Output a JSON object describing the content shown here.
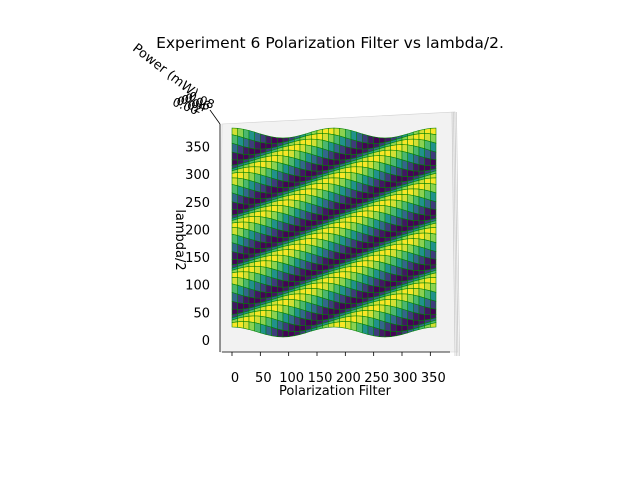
{
  "chart_data": {
    "type": "surface3d",
    "title": "Experiment 6 Polarization Filter vs lambda/2.",
    "xlabel": "Polarization Filter",
    "ylabel": "lambda/2",
    "zlabel": "Power (mW)",
    "xlim": [
      0,
      360
    ],
    "ylim": [
      0,
      360
    ],
    "zlim": [
      0.0,
      0.08
    ],
    "x_ticks": [
      "0",
      "50",
      "100",
      "150",
      "200",
      "250",
      "300",
      "350"
    ],
    "y_ticks": [
      "0",
      "50",
      "100",
      "150",
      "200",
      "250",
      "300",
      "350"
    ],
    "z_ticks": [
      "0.00",
      "0.02",
      "0.04",
      "0.06",
      "0.08"
    ],
    "view": "elevated top-down",
    "colormap": "viridis",
    "edge_color": "#008000",
    "grid_step": 10,
    "surface_model": "P(x, y) = A * cos^2(x - 2y), A ≈ 0.08 mW",
    "amplitude": 0.08
  }
}
